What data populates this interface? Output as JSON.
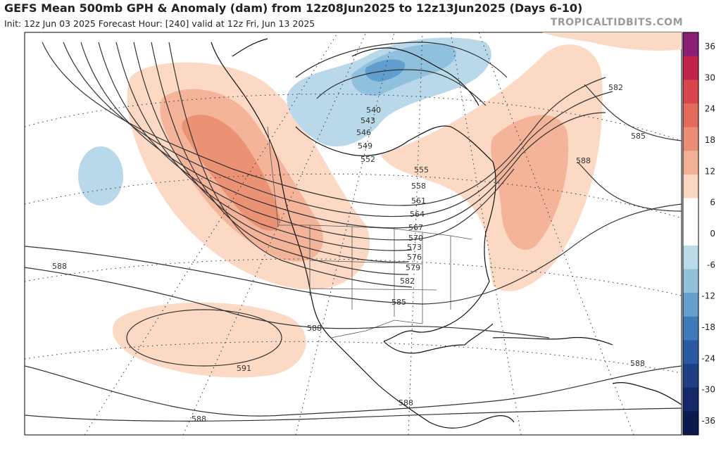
{
  "header": {
    "title": "GEFS Mean 500mb GPH & Anomaly (dam) from 12z08Jun2025 to 12z13Jun2025 (Days 6-10)",
    "subtitle": "Init: 12z Jun 03 2025   Forecast Hour: [240]   valid at 12z Fri, Jun 13 2025",
    "watermark": "TROPICALTIDBITS.COM"
  },
  "map": {
    "region": "North America",
    "field": "500mb geopotential height contours (dam) with anomaly shading",
    "contour_labels": [
      "540",
      "543",
      "546",
      "549",
      "552",
      "555",
      "558",
      "561",
      "564",
      "567",
      "570",
      "573",
      "576",
      "579",
      "582",
      "585",
      "588",
      "591"
    ],
    "extra_labels": {
      "west_588": "588",
      "east_582": "582",
      "east_585": "585",
      "east_588": "588",
      "gulf_588": "588",
      "pacific_591": "591",
      "south_588": "588",
      "mexico_588": "588",
      "texas_585": "585",
      "caribbean_588": "588"
    },
    "colors": {
      "pos_6": "#fbd9c4",
      "pos_12": "#f4b49a",
      "pos_18": "#ec9274",
      "neg_6": "#b9d9ea",
      "neg_12": "#8fc1de",
      "neg_18": "#5f9ecf",
      "contour": "#333333",
      "coast": "#111111",
      "border": "#555555",
      "graticule": "#333333"
    }
  },
  "colorbar": {
    "ticks": [
      "36",
      "30",
      "24",
      "18",
      "12",
      "6",
      "0",
      "-6",
      "-12",
      "-18",
      "-24",
      "-30",
      "-36"
    ],
    "bands": [
      "#8a1f78",
      "#c0224a",
      "#d8454a",
      "#e16a5a",
      "#ea8d73",
      "#f2b095",
      "#fbd6c0",
      "#ffffff",
      "#ffffff",
      "#bcdbe9",
      "#92c1dc",
      "#659fcc",
      "#3f7bb8",
      "#2a5ba2",
      "#1f3f85",
      "#14286a",
      "#0b1a4d"
    ]
  }
}
